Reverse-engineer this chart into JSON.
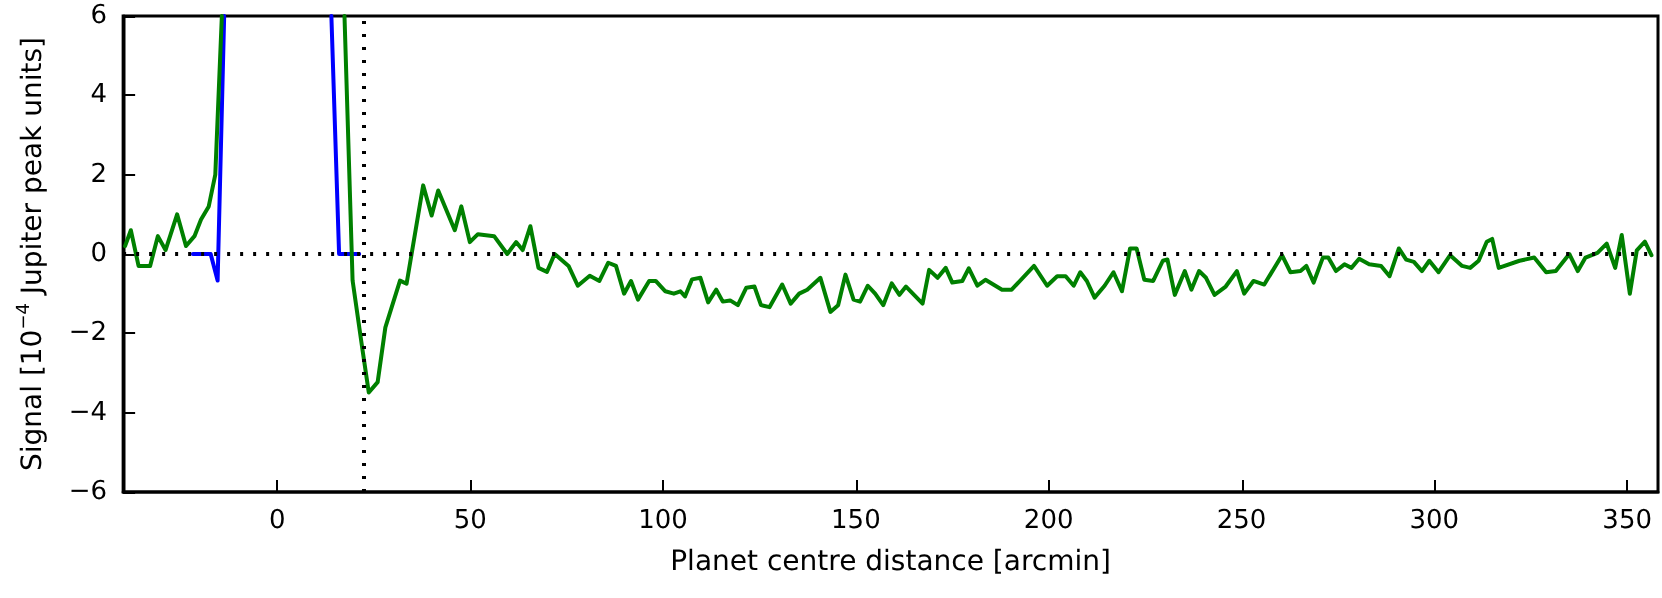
{
  "chart_data": {
    "type": "line",
    "xlabel": "Planet centre distance [arcmin]",
    "ylabel": "Signal [10$^{−4}$ Jupiter peak units]",
    "xlim": [
      -40,
      358
    ],
    "xticks": [
      0,
      50,
      100,
      150,
      200,
      250,
      300,
      350
    ],
    "ylim": [
      -6,
      6
    ],
    "yticks": [
      {
        "value": -6,
        "label": "−6"
      },
      {
        "value": -4,
        "label": "−4"
      },
      {
        "value": -2,
        "label": "−2"
      },
      0,
      2,
      4,
      6
    ],
    "grid": false,
    "marker": "none",
    "line_style": "solid",
    "ref_lines": [
      {
        "axis": "y",
        "value": 0,
        "color": "#000000",
        "line_style": "dotted"
      },
      {
        "axis": "x",
        "value": 22.5,
        "color": "#000000",
        "line_style": "dotted"
      }
    ],
    "series": [
      {
        "color": "#0000ff",
        "x": [
          -21.9,
          -17.3,
          -15.5,
          -13.8,
          null,
          14,
          16,
          21.2
        ],
        "values": [
          0,
          0,
          -0.67,
          6,
          null,
          6,
          0,
          0
        ]
      },
      {
        "color": "#008000",
        "x": [
          -39.5,
          -38,
          -36,
          -33,
          -31,
          -29,
          -26,
          -23.7,
          -21.5,
          -19.8,
          -17.8,
          -16.1,
          -14.4,
          null,
          17.4,
          19.5,
          22,
          23.7,
          26,
          28,
          31.8,
          33.5,
          37.8,
          40,
          41.7,
          46,
          47.7,
          49.9,
          52,
          56.2,
          59.6,
          61.9,
          63.6,
          65.6,
          67.7,
          69.9,
          71.9,
          75.5,
          77.9,
          81,
          83.5,
          85.8,
          87.8,
          89.9,
          91.7,
          93.5,
          96.4,
          98.1,
          100.6,
          102.8,
          104.5,
          105.7,
          107.5,
          109.7,
          111.7,
          113.8,
          115.5,
          117.4,
          119.4,
          121.6,
          123.7,
          125.4,
          127.6,
          130.9,
          133.1,
          135.3,
          137.4,
          140.8,
          143.4,
          145.4,
          147.3,
          149.4,
          151.1,
          153.1,
          155,
          157.1,
          159.3,
          161.3,
          163,
          167.3,
          169,
          171.2,
          173.3,
          175,
          177.6,
          179.3,
          181.5,
          183.6,
          187.9,
          190.4,
          196.2,
          199.6,
          202.2,
          204.4,
          206.5,
          208.2,
          209.9,
          211.9,
          214.5,
          216.8,
          219,
          221.1,
          222.8,
          224.8,
          227.1,
          229.6,
          230.8,
          232.7,
          235.3,
          237,
          239,
          240.8,
          243,
          245.9,
          248.8,
          250.7,
          253.1,
          255.9,
          260.5,
          262.7,
          265.3,
          266.8,
          268.7,
          271.1,
          272.5,
          274.5,
          276.7,
          278.5,
          280.5,
          283.1,
          286.2,
          288.4,
          290.8,
          292.7,
          294.7,
          296.8,
          298.7,
          301.1,
          304.1,
          307.2,
          309.3,
          311.5,
          313.6,
          315,
          316.7,
          322.1,
          325.9,
          329,
          331.5,
          335,
          337.2,
          339.2,
          342.3,
          344.7,
          346.9,
          348.6,
          350.7,
          352.5,
          354.6,
          356.3
        ],
        "values": [
          0.2,
          0.6,
          -0.3,
          -0.3,
          0.45,
          0.1,
          1.0,
          0.2,
          0.45,
          0.87,
          1.2,
          2.0,
          6,
          null,
          6,
          -0.67,
          -2.37,
          -3.49,
          -3.23,
          -1.85,
          -0.67,
          -0.75,
          1.73,
          0.97,
          1.6,
          0.6,
          1.2,
          0.3,
          0.5,
          0.45,
          0.0,
          0.3,
          0.1,
          0.7,
          -0.35,
          -0.45,
          0,
          -0.3,
          -0.8,
          -0.55,
          -0.68,
          -0.22,
          -0.3,
          -1.0,
          -0.68,
          -1.15,
          -0.68,
          -0.68,
          -0.94,
          -1.0,
          -0.94,
          -1.07,
          -0.64,
          -0.6,
          -1.22,
          -0.9,
          -1.2,
          -1.17,
          -1.29,
          -0.85,
          -0.82,
          -1.29,
          -1.34,
          -0.77,
          -1.25,
          -1.0,
          -0.9,
          -0.6,
          -1.46,
          -1.29,
          -0.52,
          -1.15,
          -1.2,
          -0.8,
          -1.0,
          -1.29,
          -0.74,
          -1.03,
          -0.82,
          -1.25,
          -0.4,
          -0.6,
          -0.35,
          -0.72,
          -0.68,
          -0.36,
          -0.8,
          -0.65,
          -0.9,
          -0.9,
          -0.3,
          -0.8,
          -0.56,
          -0.56,
          -0.8,
          -0.46,
          -0.68,
          -1.1,
          -0.8,
          -0.46,
          -0.94,
          0.14,
          0.14,
          -0.65,
          -0.68,
          -0.17,
          -0.14,
          -1.03,
          -0.43,
          -0.9,
          -0.43,
          -0.6,
          -1.03,
          -0.82,
          -0.43,
          -1.0,
          -0.68,
          -0.77,
          -0.03,
          -0.46,
          -0.43,
          -0.3,
          -0.72,
          -0.09,
          -0.09,
          -0.43,
          -0.26,
          -0.35,
          -0.12,
          -0.26,
          -0.3,
          -0.56,
          0.14,
          -0.14,
          -0.2,
          -0.43,
          -0.17,
          -0.46,
          -0.03,
          -0.3,
          -0.35,
          -0.17,
          0.31,
          0.38,
          -0.35,
          -0.17,
          -0.09,
          -0.46,
          -0.43,
          0,
          -0.43,
          -0.09,
          0.03,
          0.26,
          -0.35,
          0.48,
          -1.0,
          0.09,
          0.31,
          -0.03
        ]
      }
    ]
  }
}
